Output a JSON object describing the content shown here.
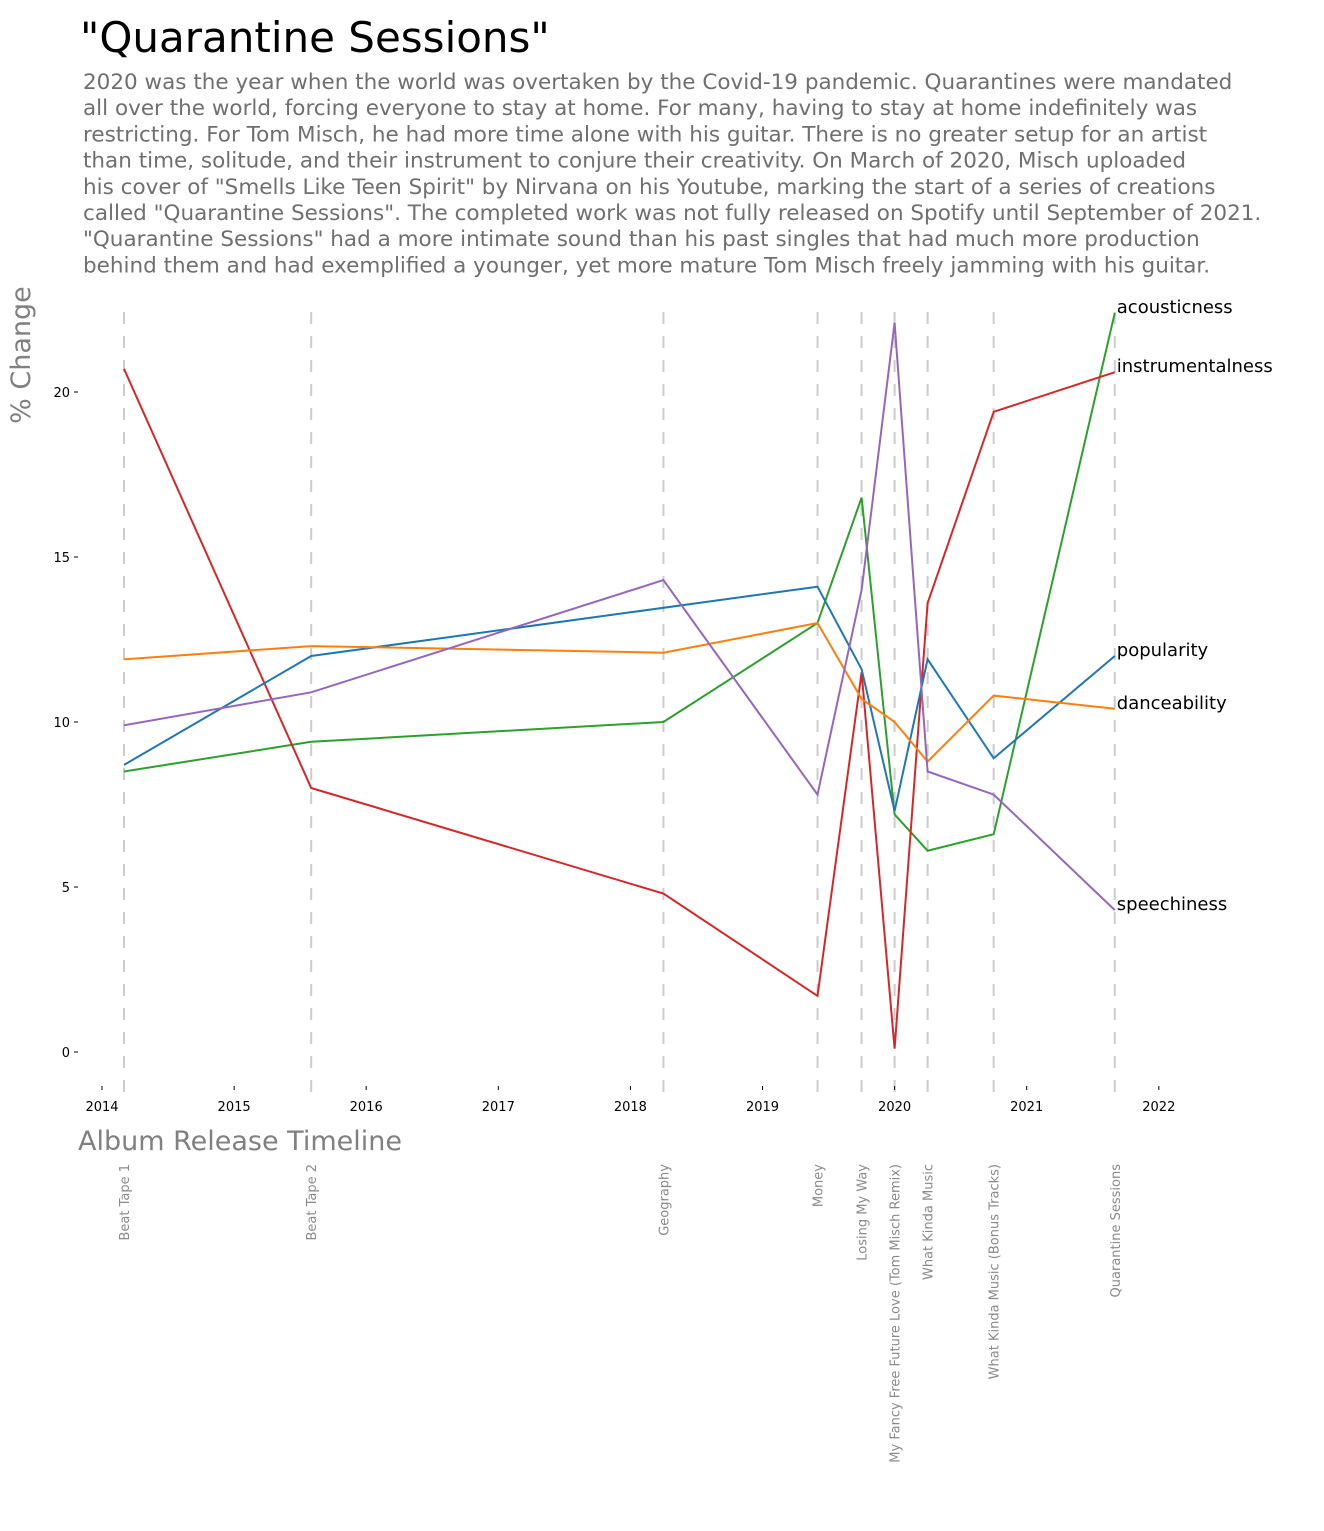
{
  "chart_data": {
    "type": "line",
    "title": "\"Quarantine Sessions\"",
    "paragraph": [
      "2020 was the year when the world was overtaken by the Covid-19 pandemic. Quarantines were mandated",
      "all over the world, forcing everyone to stay at home. For many, having to stay at home indefinitely was",
      "restricting. For Tom Misch, he had more time alone with his guitar. There is no greater setup for an artist",
      "than time, solitude, and their instrument to conjure their creativity. On March of 2020, Misch uploaded",
      "his cover of \"Smells Like Teen Spirit\" by Nirvana on his Youtube, marking the start of a series of creations",
      "called \"Quarantine Sessions\". The completed work was not fully released on Spotify until September of 2021.",
      "\"Quarantine Sessions\" had a more intimate sound than his past singles that had much more production",
      "behind them and had exemplified a younger, yet more mature Tom Misch freely jamming with his guitar."
    ],
    "xlabel": "Album Release Timeline",
    "ylabel": "% Change",
    "xlim": [
      2014,
      2022
    ],
    "ylim": [
      0,
      22
    ],
    "xticks": [
      "2014",
      "2015",
      "2016",
      "2017",
      "2018",
      "2019",
      "2020",
      "2021",
      "2022"
    ],
    "yticks": [
      "0",
      "5",
      "10",
      "15",
      "20"
    ],
    "grid": false,
    "events": [
      {
        "name": "Beat Tape 1",
        "date": "2014-03"
      },
      {
        "name": "Beat Tape 2",
        "date": "2015-08"
      },
      {
        "name": "Geography",
        "date": "2018-04"
      },
      {
        "name": "Money",
        "date": "2019-06"
      },
      {
        "name": "Losing My Way",
        "date": "2019-10"
      },
      {
        "name": "My Fancy Free Future Love (Tom Misch Remix)",
        "date": "2020-01"
      },
      {
        "name": "What Kinda Music",
        "date": "2020-04"
      },
      {
        "name": "What Kinda Music (Bonus Tracks)",
        "date": "2020-10"
      },
      {
        "name": "Quarantine Sessions",
        "date": "2021-09"
      }
    ],
    "series": [
      {
        "name": "acousticness",
        "color": "#2ca02c",
        "values": [
          8.5,
          9.4,
          10.0,
          13.0,
          16.8,
          7.2,
          6.1,
          6.6,
          22.4
        ]
      },
      {
        "name": "instrumentalness",
        "color": "#d62728",
        "values": [
          20.7,
          8.0,
          4.8,
          1.7,
          11.5,
          0.1,
          13.6,
          19.4,
          20.6
        ]
      },
      {
        "name": "popularity",
        "color": "#1f77b4",
        "values": [
          8.7,
          12.0,
          null,
          14.1,
          11.6,
          7.3,
          11.9,
          8.9,
          12.0
        ]
      },
      {
        "name": "danceability",
        "color": "#ff7f0e",
        "values": [
          11.9,
          12.3,
          12.1,
          13.0,
          10.7,
          10.0,
          8.8,
          10.8,
          10.4
        ]
      },
      {
        "name": "speechiness",
        "color": "#9467bd",
        "values": [
          9.9,
          10.9,
          14.3,
          7.8,
          14.0,
          22.1,
          8.5,
          7.8,
          4.3
        ]
      }
    ]
  }
}
